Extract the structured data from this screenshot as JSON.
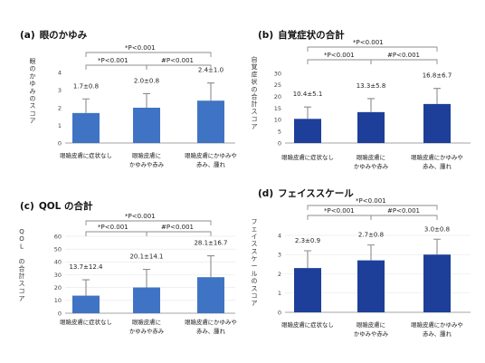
{
  "chart_data": [
    {
      "type": "bar",
      "panel": "(a)",
      "title": "眼のかゆみ",
      "ylabel": "眼のかゆみのスコア",
      "ylim": [
        0,
        4
      ],
      "yticks": [
        0,
        1,
        2,
        3,
        4
      ],
      "grid": false,
      "color": "#3f74c4",
      "categories": [
        [
          "眼瞼皮膚に症状なし"
        ],
        [
          "眼瞼皮膚に",
          "かゆみや赤み"
        ],
        [
          "眼瞼皮膚にかゆみや",
          "赤み、腫れ"
        ]
      ],
      "values": [
        1.7,
        2.0,
        2.4
      ],
      "errors": [
        0.8,
        0.8,
        1.0
      ],
      "data_labels": [
        "1.7±0.8",
        "2.0±0.8",
        "2.4±1.0"
      ],
      "significance": [
        {
          "from": 0,
          "to": 1,
          "label": "*P<0.001"
        },
        {
          "from": 1,
          "to": 2,
          "label": "#P<0.001"
        },
        {
          "from": 0,
          "to": 2,
          "label": "*P<0.001"
        }
      ]
    },
    {
      "type": "bar",
      "panel": "(b)",
      "title": "自覚症状の合計",
      "ylabel": "自覚症状の合計スコア",
      "ylim": [
        0,
        30
      ],
      "yticks": [
        0,
        5,
        10,
        15,
        20,
        25,
        30
      ],
      "grid": false,
      "color": "#1d3f9a",
      "categories": [
        [
          "眼瞼皮膚に症状なし"
        ],
        [
          "眼瞼皮膚に",
          "かゆみや赤み"
        ],
        [
          "眼瞼皮膚にかゆみや",
          "赤み、腫れ"
        ]
      ],
      "values": [
        10.4,
        13.3,
        16.8
      ],
      "errors": [
        5.1,
        5.8,
        6.7
      ],
      "data_labels": [
        "10.4±5.1",
        "13.3±5.8",
        "16.8±6.7"
      ],
      "significance": [
        {
          "from": 0,
          "to": 1,
          "label": "*P<0.001"
        },
        {
          "from": 1,
          "to": 2,
          "label": "#P<0.001"
        },
        {
          "from": 0,
          "to": 2,
          "label": "*P<0.001"
        }
      ]
    },
    {
      "type": "bar",
      "panel": "(c)",
      "title": "QOL の合計",
      "ylabel": "QOL の合計スコア",
      "ylim": [
        0,
        60
      ],
      "yticks": [
        0,
        10,
        20,
        30,
        40,
        50,
        60
      ],
      "grid": true,
      "color": "#3f74c4",
      "categories": [
        [
          "眼瞼皮膚に症状なし"
        ],
        [
          "眼瞼皮膚に",
          "かゆみや赤み"
        ],
        [
          "眼瞼皮膚にかゆみや",
          "赤み、腫れ"
        ]
      ],
      "values": [
        13.7,
        20.1,
        28.1
      ],
      "errors": [
        12.4,
        14.1,
        16.7
      ],
      "data_labels": [
        "13.7±12.4",
        "20.1±14.1",
        "28.1±16.7"
      ],
      "significance": [
        {
          "from": 0,
          "to": 1,
          "label": "*P<0.001"
        },
        {
          "from": 1,
          "to": 2,
          "label": "#P<0.001"
        },
        {
          "from": 0,
          "to": 2,
          "label": "*P<0.001"
        }
      ]
    },
    {
      "type": "bar",
      "panel": "(d)",
      "title": "フェイススケール",
      "ylabel": "フェイススケールのスコア",
      "ylim": [
        0,
        4
      ],
      "yticks": [
        0,
        1,
        2,
        3,
        4
      ],
      "grid": true,
      "color": "#1d3f9a",
      "categories": [
        [
          "眼瞼皮膚に症状なし"
        ],
        [
          "眼瞼皮膚に",
          "かゆみや赤み"
        ],
        [
          "眼瞼皮膚にかゆみや",
          "赤み、腫れ"
        ]
      ],
      "values": [
        2.3,
        2.7,
        3.0
      ],
      "errors": [
        0.9,
        0.8,
        0.8
      ],
      "data_labels": [
        "2.3±0.9",
        "2.7±0.8",
        "3.0±0.8"
      ],
      "significance": [
        {
          "from": 0,
          "to": 1,
          "label": "*P<0.001"
        },
        {
          "from": 1,
          "to": 2,
          "label": "#P<0.001"
        },
        {
          "from": 0,
          "to": 2,
          "label": "*P<0.001"
        }
      ]
    }
  ]
}
